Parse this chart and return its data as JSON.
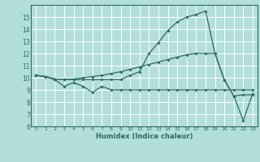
{
  "xlabel": "Humidex (Indice chaleur)",
  "background_color": "#b2dfdb",
  "grid_color": "#ffffff",
  "line_color": "#2e6b5e",
  "xlim": [
    -0.5,
    23.5
  ],
  "ylim": [
    6,
    16
  ],
  "xticks": [
    0,
    1,
    2,
    3,
    4,
    5,
    6,
    7,
    8,
    9,
    10,
    11,
    12,
    13,
    14,
    15,
    16,
    17,
    18,
    19,
    20,
    21,
    22,
    23
  ],
  "yticks": [
    6,
    7,
    8,
    9,
    10,
    11,
    12,
    13,
    14,
    15
  ],
  "line1_x": [
    0,
    1,
    2,
    3,
    4,
    5,
    6,
    7,
    8,
    9,
    10,
    11,
    12,
    13,
    14,
    15,
    16,
    17,
    18,
    19,
    20,
    21,
    22,
    23
  ],
  "line1_y": [
    10.2,
    10.1,
    9.85,
    9.3,
    9.6,
    9.3,
    8.8,
    9.3,
    9.0,
    9.0,
    9.0,
    9.0,
    9.0,
    9.0,
    9.0,
    9.0,
    9.0,
    9.0,
    9.0,
    9.0,
    9.0,
    9.0,
    9.0,
    9.0
  ],
  "line2_x": [
    0,
    1,
    2,
    3,
    4,
    5,
    6,
    7,
    8,
    9,
    10,
    11,
    12,
    13,
    14,
    15,
    16,
    17,
    18,
    19,
    20,
    21,
    22,
    23
  ],
  "line2_y": [
    10.2,
    10.1,
    9.9,
    9.85,
    9.85,
    9.85,
    9.85,
    9.85,
    9.85,
    9.85,
    10.2,
    10.5,
    12.0,
    12.9,
    13.9,
    14.6,
    15.0,
    15.2,
    15.5,
    12.0,
    9.8,
    8.5,
    6.5,
    8.7
  ],
  "line3_x": [
    0,
    1,
    2,
    3,
    4,
    5,
    6,
    7,
    8,
    9,
    10,
    11,
    12,
    13,
    14,
    15,
    16,
    17,
    18,
    19,
    20,
    21,
    22,
    23
  ],
  "line3_y": [
    10.2,
    10.1,
    9.9,
    9.85,
    9.9,
    10.0,
    10.1,
    10.2,
    10.35,
    10.5,
    10.7,
    10.9,
    11.1,
    11.3,
    11.5,
    11.7,
    11.9,
    12.0,
    12.0,
    12.0,
    9.8,
    8.5,
    8.6,
    8.6
  ]
}
